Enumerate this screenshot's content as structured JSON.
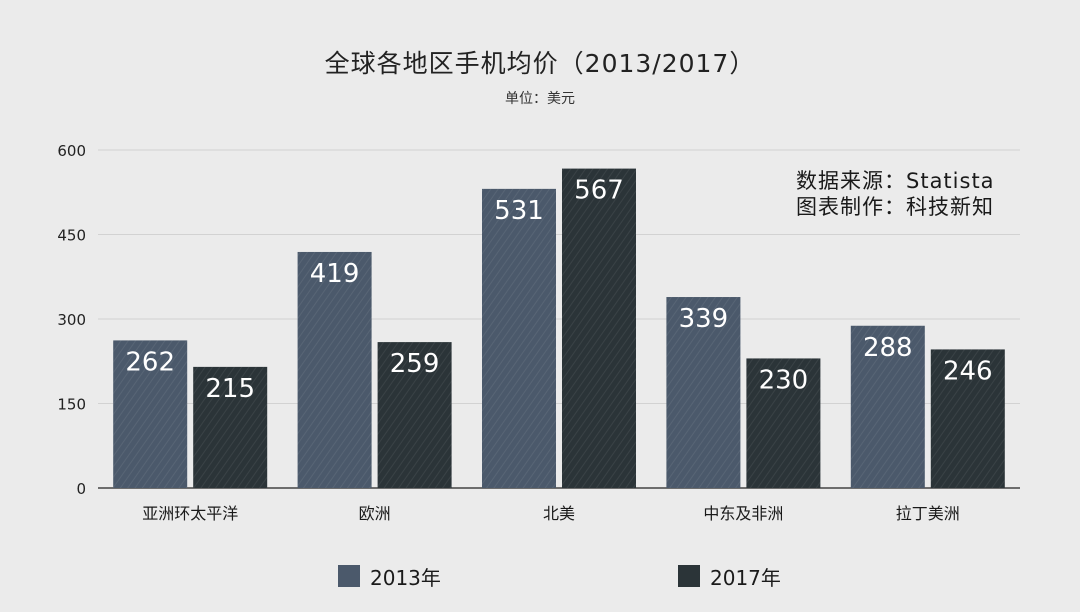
{
  "chart_data": {
    "type": "bar",
    "title": "全球各地区手机均价（2013/2017）",
    "subtitle": "单位：美元",
    "source_lines": [
      "数据来源：Statista",
      "图表制作：科技新知"
    ],
    "categories": [
      "亚洲环太平洋",
      "欧洲",
      "北美",
      "中东及非洲",
      "拉丁美洲"
    ],
    "series": [
      {
        "name": "2013年",
        "color": "#4b596b",
        "values": [
          262,
          419,
          531,
          339,
          288
        ]
      },
      {
        "name": "2017年",
        "color": "#2b3438",
        "values": [
          215,
          259,
          567,
          230,
          246
        ]
      }
    ],
    "yticks": [
      "0",
      "150",
      "300",
      "450",
      "600"
    ],
    "ylim": [
      0,
      600
    ],
    "grid": true,
    "legend_position": "bottom"
  }
}
